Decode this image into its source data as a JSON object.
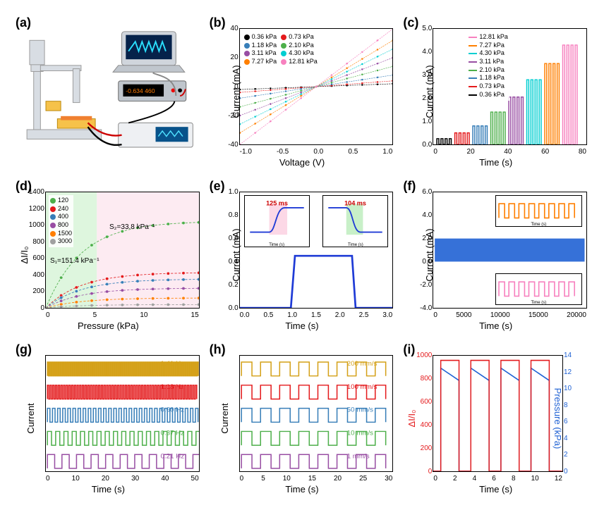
{
  "panels": {
    "a": {
      "label": "(a)"
    },
    "b": {
      "label": "(b)",
      "xlabel": "Voltage (V)",
      "ylabel": "Current (mA)",
      "xlim": [
        -1.0,
        1.0
      ],
      "ylim": [
        -40,
        40
      ],
      "xticks": [
        "-1.0",
        "-0.5",
        "0.0",
        "0.5",
        "1.0"
      ],
      "yticks": [
        "-40",
        "-20",
        "0",
        "20",
        "40"
      ],
      "series": [
        {
          "name": "0.36 kPa",
          "color": "#000000",
          "slope": 2
        },
        {
          "name": "0.73 kPa",
          "color": "#e41a1c",
          "slope": 4
        },
        {
          "name": "1.18 kPa",
          "color": "#377eb8",
          "slope": 8
        },
        {
          "name": "2.10 kPa",
          "color": "#4daf4a",
          "slope": 14
        },
        {
          "name": "3.11 kPa",
          "color": "#984ea3",
          "slope": 20
        },
        {
          "name": "4.30 kPa",
          "color": "#00ced1",
          "slope": 26
        },
        {
          "name": "7.27 kPa",
          "color": "#ff7f00",
          "slope": 32
        },
        {
          "name": "12.81 kPa",
          "color": "#f781bf",
          "slope": 40
        }
      ]
    },
    "c": {
      "label": "(c)",
      "xlabel": "Time (s)",
      "ylabel": "Current (mA)",
      "xlim": [
        0,
        85
      ],
      "ylim": [
        0,
        5.0
      ],
      "xticks": [
        "0",
        "20",
        "40",
        "60",
        "80"
      ],
      "yticks": [
        "0.0",
        "1.0",
        "2.0",
        "3.0",
        "4.0",
        "5.0"
      ],
      "series": [
        {
          "name": "0.36 kPa",
          "color": "#000000",
          "base": 0,
          "amp": 0.25,
          "start": 2
        },
        {
          "name": "0.73 kPa",
          "color": "#e41a1c",
          "base": 0,
          "amp": 0.5,
          "start": 12
        },
        {
          "name": "1.18 kPa",
          "color": "#377eb8",
          "base": 0,
          "amp": 0.8,
          "start": 22
        },
        {
          "name": "2.10 kPa",
          "color": "#4daf4a",
          "base": 0,
          "amp": 1.4,
          "start": 32
        },
        {
          "name": "3.11 kPa",
          "color": "#984ea3",
          "base": 0,
          "amp": 2.05,
          "start": 42
        },
        {
          "name": "4.30 kPa",
          "color": "#00ced1",
          "base": 0,
          "amp": 2.8,
          "start": 52
        },
        {
          "name": "7.27 kPa",
          "color": "#ff7f00",
          "base": 0,
          "amp": 3.5,
          "start": 62
        },
        {
          "name": "12.81 kPa",
          "color": "#f781bf",
          "base": 0,
          "amp": 4.3,
          "start": 72
        }
      ]
    },
    "d": {
      "label": "(d)",
      "xlabel": "Pressure (kPa)",
      "ylabel": "ΔI/I₀",
      "xlim": [
        0,
        15
      ],
      "ylim": [
        0,
        1400
      ],
      "xticks": [
        "0",
        "5",
        "10",
        "15"
      ],
      "yticks": [
        "0",
        "200",
        "400",
        "600",
        "800",
        "1000",
        "1200",
        "1400"
      ],
      "shade_left": "#c8f0c8",
      "shade_right": "#fcd8e6",
      "anno1": "S₁=151.4 kPa⁻¹",
      "anno2": "S₂=33.8 kPa⁻¹",
      "series": [
        {
          "name": "120",
          "color": "#4daf4a",
          "max": 1050
        },
        {
          "name": "240",
          "color": "#e41a1c",
          "max": 430
        },
        {
          "name": "400",
          "color": "#377eb8",
          "max": 350
        },
        {
          "name": "800",
          "color": "#984ea3",
          "max": 240
        },
        {
          "name": "1500",
          "color": "#ff7f00",
          "max": 120
        },
        {
          "name": "3000",
          "color": "#a0a0a0",
          "max": 40
        }
      ]
    },
    "e": {
      "label": "(e)",
      "xlabel": "Time (s)",
      "ylabel": "Current (mA)",
      "xlim": [
        0,
        3.0
      ],
      "ylim": [
        0,
        1.0
      ],
      "xticks": [
        "0.0",
        "0.5",
        "1.0",
        "1.5",
        "2.0",
        "2.5",
        "3.0"
      ],
      "yticks": [
        "0.0",
        "0.2",
        "0.4",
        "0.6",
        "0.8",
        "1.0"
      ],
      "line_color": "#1f3bd6",
      "step": {
        "rise": 1.0,
        "fall": 2.2,
        "high": 0.45,
        "low": 0.0
      },
      "inset_rise": {
        "label": "125 ms",
        "bg": "#fcd8e6",
        "xticks": "0.90 0.95 1.00 1.05 1.10 1.15"
      },
      "inset_fall": {
        "label": "104 ms",
        "bg": "#c8f0c8",
        "xticks": "2.10  2.15  2.20  2.25  2.30"
      }
    },
    "f": {
      "label": "(f)",
      "xlabel": "Time (s)",
      "ylabel": "Current (mA)",
      "xlim": [
        0,
        20000
      ],
      "ylim": [
        -4.0,
        6.0
      ],
      "xticks": [
        "0",
        "5000",
        "10000",
        "15000",
        "20000"
      ],
      "yticks": [
        "-4.0",
        "-2.0",
        "0.0",
        "2.0",
        "4.0",
        "6.0"
      ],
      "band_low": 0.0,
      "band_high": 2.0,
      "band_color": "#2062d4",
      "inset_top_color": "#ff7f00",
      "inset_bot_color": "#f781bf"
    },
    "g": {
      "label": "(g)",
      "xlabel": "Time (s)",
      "ylabel": "Current",
      "xlim": [
        0,
        50
      ],
      "ylim_rows": 5,
      "xticks": [
        "0",
        "10",
        "20",
        "30",
        "40",
        "50"
      ],
      "series": [
        {
          "name": "1.41 Hz",
          "color": "#d4a017",
          "period": 0.71
        },
        {
          "name": "1.13 Hz",
          "color": "#e41a1c",
          "period": 0.88
        },
        {
          "name": "0.60 Hz",
          "color": "#377eb8",
          "period": 1.67
        },
        {
          "name": "0.37 Hz",
          "color": "#4daf4a",
          "period": 2.7
        },
        {
          "name": "0.21 Hz",
          "color": "#984ea3",
          "period": 4.76
        }
      ]
    },
    "h": {
      "label": "(h)",
      "xlabel": "Time (s)",
      "ylabel": "Current",
      "xlim": [
        0,
        30
      ],
      "ylim_rows": 5,
      "xticks": [
        "0",
        "5",
        "10",
        "15",
        "20",
        "25",
        "30"
      ],
      "series": [
        {
          "name": "200 mm/s",
          "color": "#d4a017"
        },
        {
          "name": "100 mm/s",
          "color": "#e41a1c"
        },
        {
          "name": "50 mm/s",
          "color": "#377eb8"
        },
        {
          "name": "10 mm/s",
          "color": "#4daf4a"
        },
        {
          "name": "1 mm/s",
          "color": "#984ea3"
        }
      ]
    },
    "i": {
      "label": "(i)",
      "xlabel": "Time (s)",
      "ylabel": "ΔI/I₀",
      "y2label": "Pressure (kPa)",
      "xlim": [
        0,
        12
      ],
      "ylim": [
        0,
        1000
      ],
      "y2lim": [
        0,
        14
      ],
      "xticks": [
        "0",
        "2",
        "4",
        "6",
        "8",
        "10",
        "12"
      ],
      "yticks": [
        "0",
        "200",
        "400",
        "600",
        "800",
        "1000"
      ],
      "y2ticks": [
        "0",
        "2",
        "4",
        "6",
        "8",
        "10",
        "12",
        "14"
      ],
      "left_color": "#e41a1c",
      "right_color": "#2062d4",
      "pulses": [
        0.7,
        3.5,
        6.3,
        9.1
      ],
      "pulse_width": 1.7,
      "di_high": 960,
      "p_high": 12.5
    }
  },
  "colors": {
    "axis": "#000000",
    "bg": "#ffffff"
  },
  "typography": {
    "label_fontsize": 18,
    "axis_fontsize": 13,
    "tick_fontsize": 10
  }
}
